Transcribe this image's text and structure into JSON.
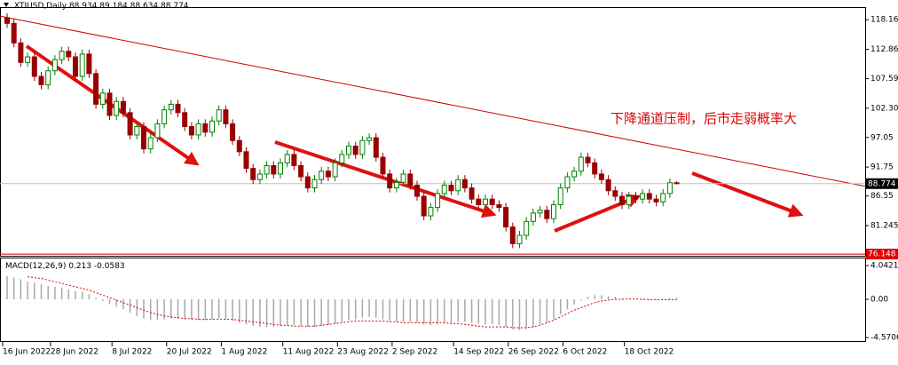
{
  "chart_data": [
    {
      "type": "candlestick",
      "title": "XTIUSD,Daily",
      "open": [
        118.5,
        117.5,
        114.0,
        110.5,
        111.5,
        108.0,
        106.5,
        109.0,
        111.0,
        112.5,
        111.5,
        108.0,
        112.0,
        108.5,
        103.0,
        105.0,
        101.0,
        103.5,
        101.5,
        97.5,
        99.0,
        95.0,
        97.0,
        99.5,
        102.0,
        103.0,
        101.5,
        99.0,
        97.5,
        99.5,
        98.0,
        100.0,
        102.0,
        99.5,
        96.5,
        94.5,
        91.5,
        89.5,
        90.5,
        92.0,
        90.5,
        92.5,
        94.0,
        92.0,
        90.0,
        88.0,
        89.5,
        91.0,
        90.0,
        92.5,
        94.0,
        95.5,
        94.0,
        96.5,
        97.0,
        93.5,
        90.5,
        88.0,
        89.0,
        90.5,
        88.5,
        86.5,
        83.0,
        84.5,
        87.0,
        88.5,
        87.5,
        89.5,
        88.0,
        86.0,
        85.0,
        86.0,
        85.0,
        84.5,
        81.0,
        78.0,
        79.5,
        82.0,
        83.5,
        84.0,
        82.5,
        85.0,
        88.0,
        90.0,
        91.0,
        93.5,
        92.5,
        90.5,
        89.5,
        87.5,
        86.5,
        85.0,
        86.5,
        86.0,
        87.0,
        86.0,
        85.5,
        87.0,
        88.934
      ],
      "high": [
        119.3,
        118.3,
        114.8,
        112.3,
        112.3,
        108.8,
        109.8,
        111.8,
        113.3,
        113.3,
        112.3,
        112.8,
        112.8,
        109.3,
        105.8,
        105.8,
        104.3,
        104.3,
        102.3,
        99.8,
        99.8,
        97.8,
        100.3,
        102.8,
        103.8,
        103.8,
        102.3,
        99.8,
        100.3,
        100.3,
        100.8,
        102.8,
        102.8,
        100.3,
        97.3,
        95.3,
        92.3,
        91.3,
        92.8,
        92.8,
        93.3,
        94.8,
        94.8,
        92.8,
        90.8,
        90.3,
        91.8,
        91.8,
        93.3,
        94.8,
        96.3,
        96.3,
        97.3,
        97.8,
        97.8,
        94.3,
        91.3,
        89.8,
        91.3,
        91.3,
        89.3,
        87.3,
        85.3,
        87.8,
        89.3,
        89.3,
        90.3,
        90.3,
        88.8,
        86.8,
        86.8,
        86.8,
        85.8,
        85.3,
        81.8,
        80.3,
        82.8,
        84.3,
        84.8,
        84.8,
        85.8,
        88.8,
        90.8,
        91.8,
        94.3,
        94.3,
        93.3,
        91.3,
        90.3,
        88.3,
        87.3,
        87.3,
        87.3,
        87.8,
        87.8,
        86.8,
        87.8,
        89.7,
        89.184
      ],
      "low": [
        116.7,
        113.2,
        109.7,
        109.7,
        107.2,
        105.7,
        105.7,
        108.2,
        110.2,
        110.7,
        107.2,
        107.2,
        107.7,
        102.2,
        102.2,
        100.2,
        100.2,
        100.7,
        96.7,
        96.7,
        94.2,
        94.2,
        96.2,
        98.7,
        101.2,
        100.7,
        98.2,
        96.7,
        96.7,
        97.2,
        97.2,
        99.2,
        98.7,
        95.7,
        93.7,
        90.7,
        88.7,
        88.7,
        89.7,
        89.7,
        89.7,
        91.7,
        91.2,
        89.2,
        87.2,
        87.2,
        88.7,
        89.2,
        89.2,
        91.7,
        93.2,
        93.2,
        93.2,
        95.7,
        92.7,
        89.7,
        87.2,
        87.2,
        88.2,
        87.7,
        85.7,
        82.2,
        82.2,
        83.7,
        86.2,
        86.7,
        86.7,
        87.2,
        85.2,
        84.2,
        84.2,
        84.2,
        83.7,
        80.2,
        77.2,
        77.2,
        78.7,
        81.2,
        82.7,
        81.7,
        81.7,
        84.2,
        87.2,
        89.2,
        90.2,
        91.7,
        89.7,
        88.7,
        86.7,
        85.7,
        84.2,
        84.2,
        85.2,
        85.2,
        85.2,
        84.7,
        84.7,
        86.2,
        88.634
      ],
      "close": [
        117.5,
        114.0,
        110.5,
        111.5,
        108.0,
        106.5,
        109.0,
        111.0,
        112.5,
        111.5,
        108.0,
        112.0,
        108.5,
        103.0,
        105.0,
        101.0,
        103.5,
        101.5,
        97.5,
        99.0,
        95.0,
        97.0,
        99.5,
        102.0,
        103.0,
        101.5,
        99.0,
        97.5,
        99.5,
        98.0,
        100.0,
        102.0,
        99.5,
        96.5,
        94.5,
        91.5,
        89.5,
        90.5,
        92.0,
        90.5,
        92.5,
        94.0,
        92.0,
        90.0,
        88.0,
        89.5,
        91.0,
        90.0,
        92.5,
        94.0,
        95.5,
        94.0,
        96.5,
        97.0,
        93.5,
        90.5,
        88.0,
        89.0,
        90.5,
        88.5,
        86.5,
        83.0,
        84.5,
        87.0,
        88.5,
        87.5,
        89.5,
        88.0,
        86.0,
        85.0,
        86.0,
        85.0,
        84.5,
        81.0,
        78.0,
        79.5,
        82.0,
        83.5,
        84.0,
        82.5,
        85.0,
        88.0,
        90.0,
        91.0,
        93.5,
        92.5,
        90.5,
        89.5,
        87.5,
        86.5,
        85.0,
        86.5,
        86.0,
        87.0,
        86.0,
        85.5,
        87.0,
        88.934,
        88.774
      ],
      "up_color": "#008000",
      "down_color": "#990000",
      "ylim": [
        76.0,
        120.1
      ],
      "yticks": [
        118.16,
        112.86,
        107.59,
        {
          "value": 102.3,
          "label": "102.30"
        },
        97.05,
        91.75,
        86.55,
        81.245
      ],
      "xticks": [
        {
          "value": 0,
          "label": "16 Jun 2022"
        },
        {
          "value": 7,
          "label": "28 Jun 2022"
        },
        {
          "value": 16,
          "label": "8 Jul 2022"
        },
        {
          "value": 24,
          "label": "20 Jul 2022"
        },
        {
          "value": 32,
          "label": "1 Aug 2022"
        },
        {
          "value": 41,
          "label": "11 Aug 2022"
        },
        {
          "value": 49,
          "label": "23 Aug 2022"
        },
        {
          "value": 57,
          "label": "2 Sep 2022"
        },
        {
          "value": 66,
          "label": "14 Sep 2022"
        },
        {
          "value": 74,
          "label": "26 Sep 2022"
        },
        {
          "value": 82,
          "label": "6 Oct 2022"
        },
        {
          "value": 91,
          "label": "18 Oct 2022"
        }
      ],
      "trend_line": [
        118.8,
        88.3
      ],
      "trend_color": "#cc0000",
      "low_line": 76.148,
      "annotation": "下降通道压制，后市走弱概率大"
    },
    {
      "type": "macd",
      "title": "MACD(12,26,9)",
      "histogram": [
        2.8,
        2.6,
        2.4,
        2.1,
        2.0,
        1.8,
        1.6,
        1.5,
        1.4,
        1.2,
        1.0,
        0.9,
        0.6,
        0.2,
        -0.2,
        -0.6,
        -0.9,
        -1.2,
        -1.6,
        -2.0,
        -2.3,
        -2.5,
        -2.5,
        -2.4,
        -2.3,
        -2.3,
        -2.4,
        -2.5,
        -2.5,
        -2.5,
        -2.4,
        -2.3,
        -2.4,
        -2.6,
        -2.8,
        -3.0,
        -3.2,
        -3.3,
        -3.3,
        -3.3,
        -3.2,
        -3.1,
        -3.1,
        -3.2,
        -3.3,
        -3.3,
        -3.2,
        -3.1,
        -2.9,
        -2.7,
        -2.5,
        -2.4,
        -2.2,
        -2.1,
        -2.2,
        -2.4,
        -2.6,
        -2.7,
        -2.7,
        -2.7,
        -2.8,
        -3.0,
        -3.1,
        -3.0,
        -2.9,
        -2.8,
        -2.7,
        -2.7,
        -2.8,
        -2.9,
        -3.0,
        -3.0,
        -3.1,
        -3.3,
        -3.6,
        -3.7,
        -3.5,
        -3.3,
        -3.0,
        -2.8,
        -2.4,
        -1.8,
        -1.2,
        -0.6,
        -0.1,
        0.3,
        0.5,
        0.5,
        0.4,
        0.3,
        0.1,
        0.0,
        0.0,
        -0.1,
        -0.1,
        -0.1,
        0.0,
        0.1,
        0.213
      ],
      "signal": [
        null,
        null,
        null,
        2.7,
        2.6,
        2.5,
        2.3,
        2.1,
        1.9,
        1.7,
        1.5,
        1.3,
        1.1,
        0.8,
        0.5,
        0.2,
        -0.1,
        -0.4,
        -0.7,
        -1.0,
        -1.3,
        -1.6,
        -1.8,
        -2.0,
        -2.1,
        -2.2,
        -2.3,
        -2.3,
        -2.4,
        -2.4,
        -2.4,
        -2.4,
        -2.4,
        -2.4,
        -2.5,
        -2.6,
        -2.7,
        -2.8,
        -2.9,
        -3.0,
        -3.1,
        -3.1,
        -3.2,
        -3.2,
        -3.2,
        -3.2,
        -3.1,
        -3.0,
        -2.9,
        -2.8,
        -2.7,
        -2.6,
        -2.6,
        -2.6,
        -2.6,
        -2.6,
        -2.7,
        -2.7,
        -2.8,
        -2.8,
        -2.8,
        -2.8,
        -2.8,
        -2.8,
        -2.8,
        -2.9,
        -2.9,
        -3.0,
        -3.1,
        -3.2,
        -3.3,
        -3.3,
        -3.3,
        -3.3,
        -3.4,
        -3.4,
        -3.4,
        -3.3,
        -3.1,
        -2.8,
        -2.5,
        -2.1,
        -1.7,
        -1.3,
        -1.0,
        -0.7,
        -0.4,
        -0.2,
        -0.1,
        0.0,
        0.0,
        0.05,
        0.05,
        0.0,
        -0.02,
        -0.04,
        -0.05,
        -0.05,
        -0.0583
      ],
      "histogram_color": "#a8a8a8",
      "signal_color": "#e00000",
      "ylim": [
        -4.99,
        4.68
      ],
      "yticks": [
        4.0421,
        {
          "value": 0,
          "label": "0.00"
        },
        -4.5706
      ]
    }
  ]
}
